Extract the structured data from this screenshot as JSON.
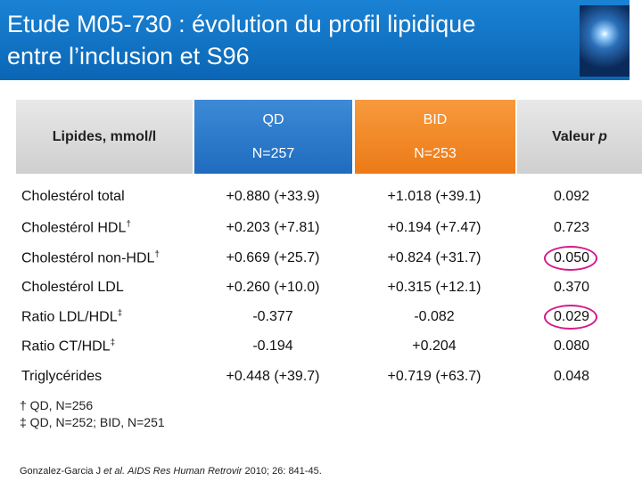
{
  "header": {
    "title_line1": "Etude M05-730 : évolution du profil lipidique",
    "title_line2": "entre l’inclusion et S96"
  },
  "table": {
    "columns": {
      "lipides": "Lipides, mmol/l",
      "qd": "QD",
      "qd_n": "N=257",
      "bid": "BID",
      "bid_n": "N=253",
      "p_word": "Valeur",
      "p_letter": "p"
    },
    "rows": [
      {
        "label": "Cholestérol total",
        "qd": "+0.880 (+33.9)",
        "bid": "+1.018 (+39.1)",
        "p": "0.092"
      },
      {
        "label": "Cholestérol HDL",
        "sup": "†",
        "qd": "+0.203 (+7.81)",
        "bid": "+0.194 (+7.47)",
        "p": "0.723"
      },
      {
        "label": "Cholestérol non-HDL",
        "sup": "†",
        "qd": "+0.669 (+25.7)",
        "bid": "+0.824 (+31.7)",
        "p": "0.050",
        "highlight": true
      },
      {
        "label": "Cholestérol LDL",
        "qd": "+0.260 (+10.0)",
        "bid": "+0.315 (+12.1)",
        "p": "0.370"
      },
      {
        "label": "Ratio LDL/HDL",
        "sup": "‡",
        "qd": "-0.377",
        "bid": "-0.082",
        "p": "0.029",
        "highlight": true
      },
      {
        "label": "Ratio CT/HDL",
        "sup": "‡",
        "qd": "-0.194",
        "bid": "+0.204",
        "p": "0.080"
      },
      {
        "label": "Triglycérides",
        "qd": "+0.448 (+39.7)",
        "bid": "+0.719 (+63.7)",
        "p": "0.048"
      }
    ]
  },
  "footnotes": [
    "† QD, N=256",
    "‡ QD, N=252; BID, N=251"
  ],
  "citation": [
    "Gonzalez-Garcia J ",
    "et al.",
    " ",
    "AIDS Res Human Retrovir",
    " 2010; 26: 841-45."
  ]
}
